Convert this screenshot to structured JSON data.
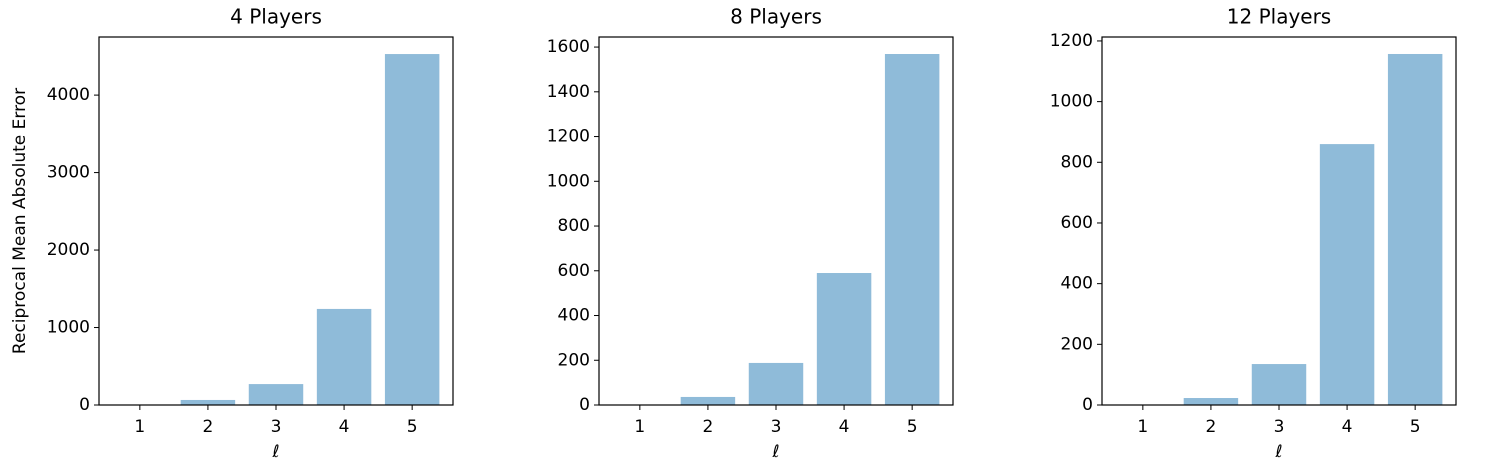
{
  "chart_data": [
    {
      "type": "bar",
      "title": "4 Players",
      "x_label": "ℓ",
      "y_label": "Reciprocal Mean Absolute Error",
      "categories": [
        "1",
        "2",
        "3",
        "4",
        "5"
      ],
      "values": [
        3,
        65,
        270,
        1240,
        4530
      ],
      "color": "#8fbbd9",
      "ylim": [
        0,
        4750
      ],
      "yticks": [
        0,
        1000,
        2000,
        3000,
        4000
      ],
      "grid": false
    },
    {
      "type": "bar",
      "title": "8 Players",
      "x_label": "ℓ",
      "categories": [
        "1",
        "2",
        "3",
        "4",
        "5"
      ],
      "values": [
        2,
        36,
        188,
        590,
        1569
      ],
      "color": "#8fbbd9",
      "ylim": [
        0,
        1645
      ],
      "yticks": [
        0,
        200,
        400,
        600,
        800,
        1000,
        1200,
        1400,
        1600
      ],
      "grid": false
    },
    {
      "type": "bar",
      "title": "12 Players",
      "x_label": "ℓ",
      "categories": [
        "1",
        "2",
        "3",
        "4",
        "5"
      ],
      "values": [
        1,
        23,
        135,
        860,
        1157
      ],
      "color": "#8fbbd9",
      "ylim": [
        0,
        1213
      ],
      "yticks": [
        0,
        200,
        400,
        600,
        800,
        1000,
        1200
      ],
      "grid": false
    }
  ]
}
